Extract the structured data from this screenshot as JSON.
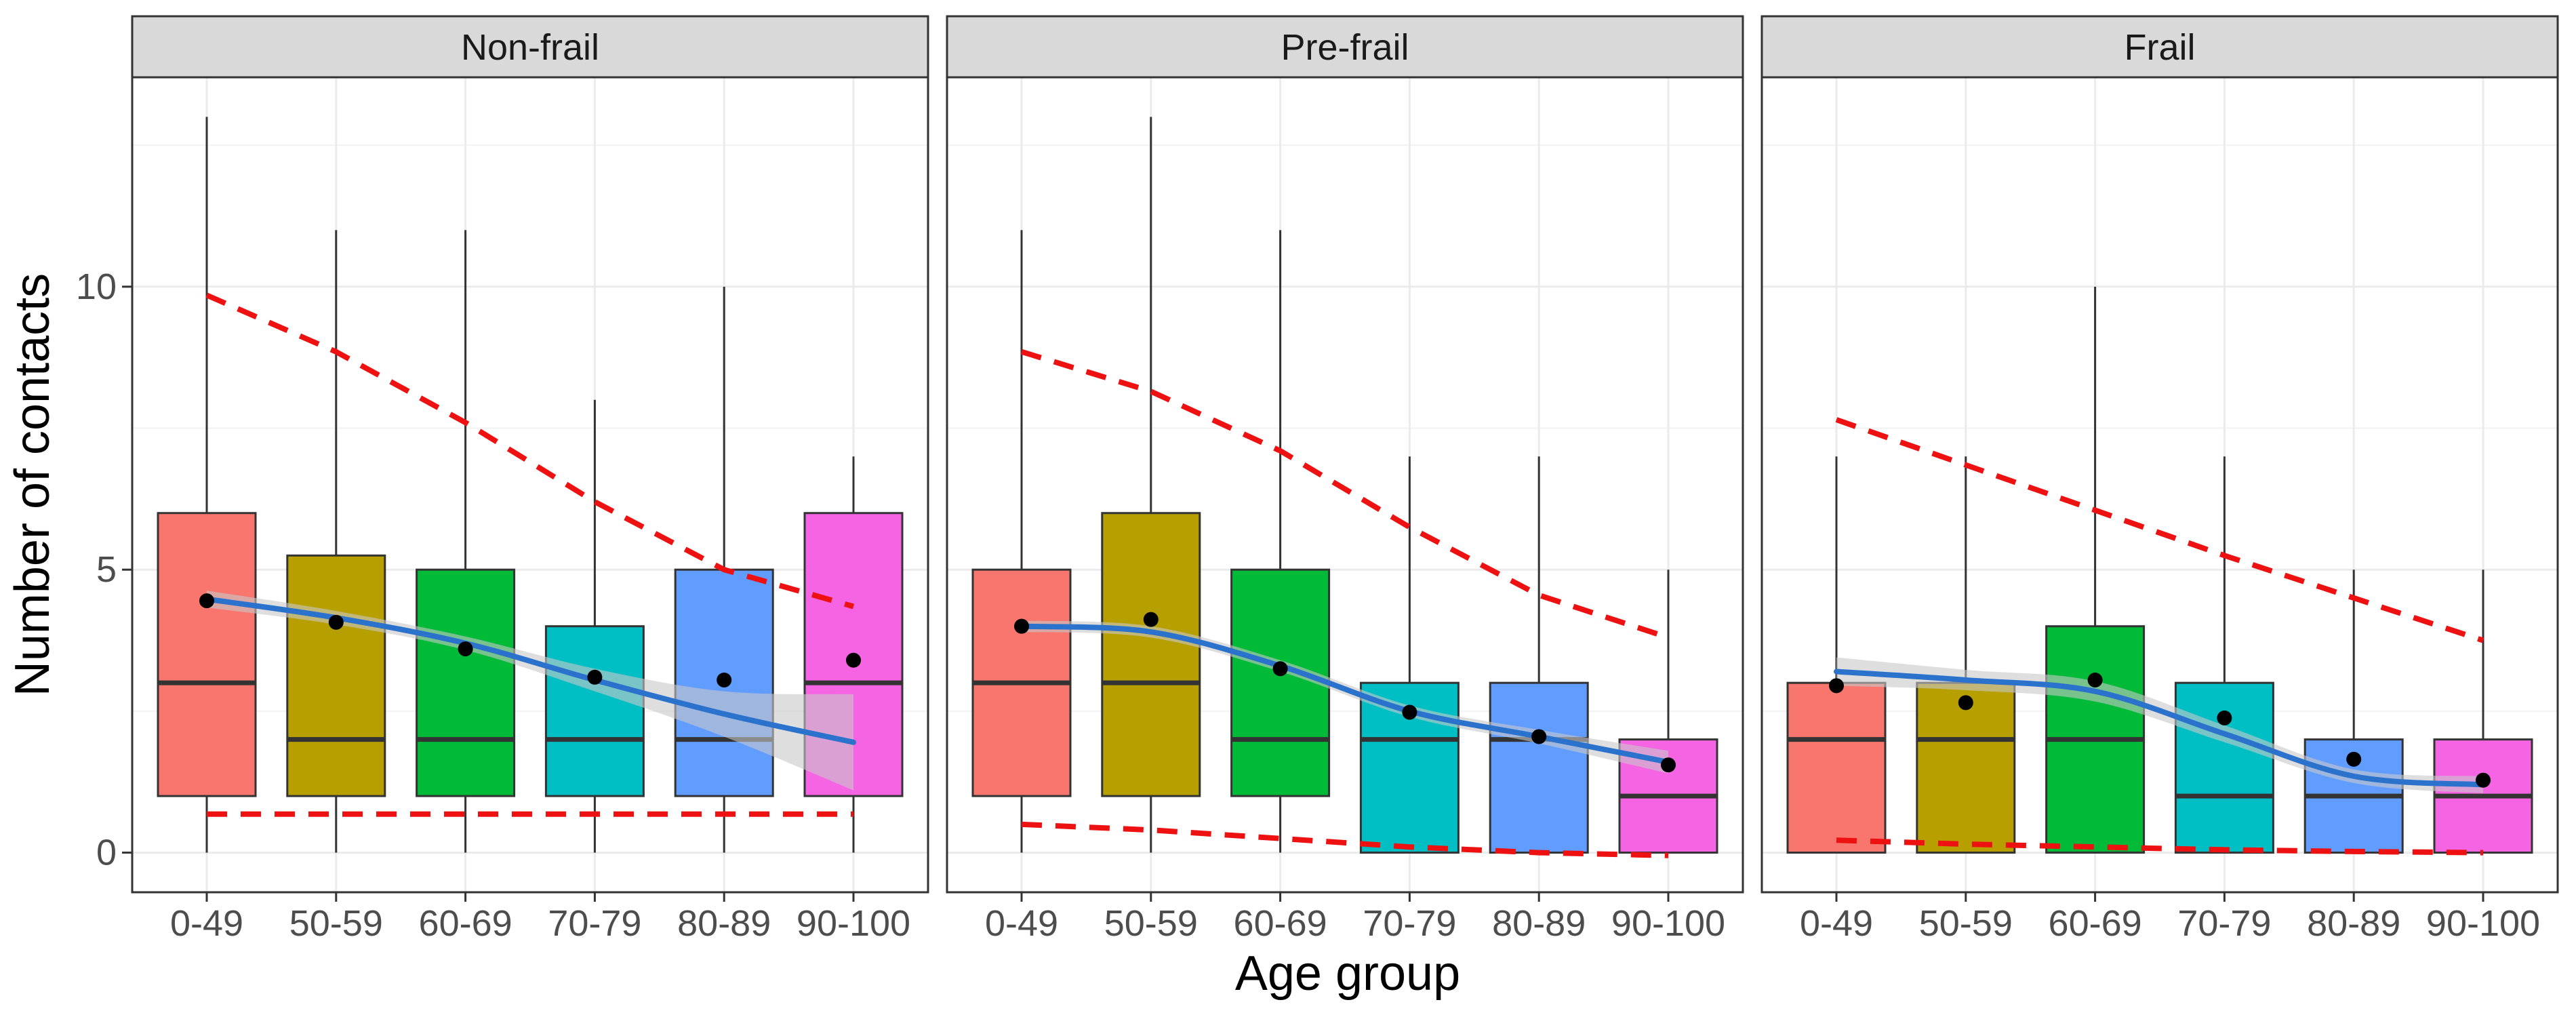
{
  "chart_data": {
    "type": "box",
    "xlabel": "Age group",
    "ylabel": "Number of contacts",
    "categories": [
      "0-49",
      "50-59",
      "60-69",
      "70-79",
      "80-89",
      "90-100"
    ],
    "y_ticks": [
      0,
      5,
      10
    ],
    "ylim": [
      -0.7,
      13.7
    ],
    "grid": true,
    "colors": {
      "boxes": [
        "#F8766D",
        "#B79F00",
        "#00BA38",
        "#00BFC4",
        "#619CFF",
        "#F564E3"
      ],
      "smooth_line": "#2A72CC",
      "smooth_band": "#C8C8C8",
      "reference_lines": "#EE1111",
      "strip_background": "#D9D9D9",
      "mean_point": "#000000"
    },
    "panels": [
      {
        "title": "Non-frail",
        "boxes": [
          {
            "min": 0,
            "q1": 1,
            "median": 3,
            "q3": 6,
            "max": 13,
            "mean": 4.45
          },
          {
            "min": 0,
            "q1": 1,
            "median": 2,
            "q3": 5.25,
            "max": 11,
            "mean": 4.07
          },
          {
            "min": 0,
            "q1": 1,
            "median": 2,
            "q3": 5,
            "max": 11,
            "mean": 3.6
          },
          {
            "min": 0,
            "q1": 1,
            "median": 2,
            "q3": 4,
            "max": 8,
            "mean": 3.1
          },
          {
            "min": 0,
            "q1": 1,
            "median": 2,
            "q3": 5,
            "max": 10,
            "mean": 3.05
          },
          {
            "min": 0,
            "q1": 1,
            "median": 3,
            "q3": 6,
            "max": 7,
            "mean": 3.4
          }
        ],
        "smooth": [
          4.48,
          4.15,
          3.7,
          3.05,
          2.45,
          1.95
        ],
        "smooth_band": [
          0.15,
          0.12,
          0.12,
          0.2,
          0.4,
          0.85
        ],
        "upper_dashed": [
          9.85,
          8.85,
          7.6,
          6.2,
          5.0,
          4.35
        ],
        "lower_dashed": [
          0.68,
          0.68,
          0.68,
          0.68,
          0.68,
          0.68
        ]
      },
      {
        "title": "Pre-frail",
        "boxes": [
          {
            "min": 0,
            "q1": 1,
            "median": 3,
            "q3": 5,
            "max": 11,
            "mean": 4.0
          },
          {
            "min": 0,
            "q1": 1,
            "median": 3,
            "q3": 6,
            "max": 13,
            "mean": 4.12
          },
          {
            "min": 0,
            "q1": 1,
            "median": 2,
            "q3": 5,
            "max": 11,
            "mean": 3.25
          },
          {
            "min": 0,
            "q1": 0,
            "median": 2,
            "q3": 3,
            "max": 7,
            "mean": 2.48
          },
          {
            "min": 0,
            "q1": 0,
            "median": 2,
            "q3": 3,
            "max": 7,
            "mean": 2.05
          },
          {
            "min": 0,
            "q1": 0,
            "median": 1,
            "q3": 2,
            "max": 5,
            "mean": 1.55
          }
        ],
        "smooth": [
          4.0,
          3.9,
          3.3,
          2.5,
          2.05,
          1.6
        ],
        "smooth_band": [
          0.1,
          0.1,
          0.1,
          0.1,
          0.12,
          0.2
        ],
        "upper_dashed": [
          8.85,
          8.15,
          7.1,
          5.75,
          4.55,
          3.8
        ],
        "lower_dashed": [
          0.5,
          0.4,
          0.25,
          0.1,
          0.0,
          -0.05
        ]
      },
      {
        "title": "Frail",
        "boxes": [
          {
            "min": 0,
            "q1": 0,
            "median": 2,
            "q3": 3,
            "max": 7,
            "mean": 2.95
          },
          {
            "min": 0,
            "q1": 0,
            "median": 2,
            "q3": 3,
            "max": 7,
            "mean": 2.65
          },
          {
            "min": 0,
            "q1": 0,
            "median": 2,
            "q3": 4,
            "max": 10,
            "mean": 3.05
          },
          {
            "min": 0,
            "q1": 0,
            "median": 1,
            "q3": 3,
            "max": 7,
            "mean": 2.38
          },
          {
            "min": 0,
            "q1": 0,
            "median": 1,
            "q3": 2,
            "max": 5,
            "mean": 1.65
          },
          {
            "min": 0,
            "q1": 0,
            "median": 1,
            "q3": 2,
            "max": 5,
            "mean": 1.28
          }
        ],
        "smooth": [
          3.2,
          3.05,
          2.85,
          2.1,
          1.35,
          1.2
        ],
        "smooth_band": [
          0.25,
          0.18,
          0.18,
          0.15,
          0.12,
          0.15
        ],
        "upper_dashed": [
          7.65,
          6.85,
          6.05,
          5.25,
          4.5,
          3.75
        ],
        "lower_dashed": [
          0.22,
          0.15,
          0.1,
          0.05,
          0.02,
          0.0
        ]
      }
    ]
  }
}
